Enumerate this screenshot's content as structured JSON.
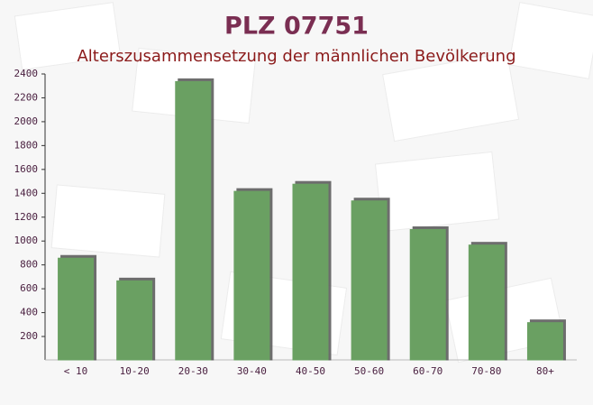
{
  "chart_data": {
    "type": "bar",
    "title": "PLZ 07751",
    "subtitle": "Alterszusammensetzung der männlichen Bevölkerung",
    "categories": [
      "< 10",
      "10-20",
      "20-30",
      "30-40",
      "40-50",
      "50-60",
      "60-70",
      "70-80",
      "80+"
    ],
    "values": [
      860,
      670,
      2340,
      1420,
      1480,
      1340,
      1100,
      970,
      320
    ],
    "color": "#6aa062",
    "ylim": [
      0,
      2400
    ],
    "yticks": [
      200,
      400,
      600,
      800,
      1000,
      1200,
      1400,
      1600,
      1800,
      2000,
      2200,
      2400
    ]
  }
}
